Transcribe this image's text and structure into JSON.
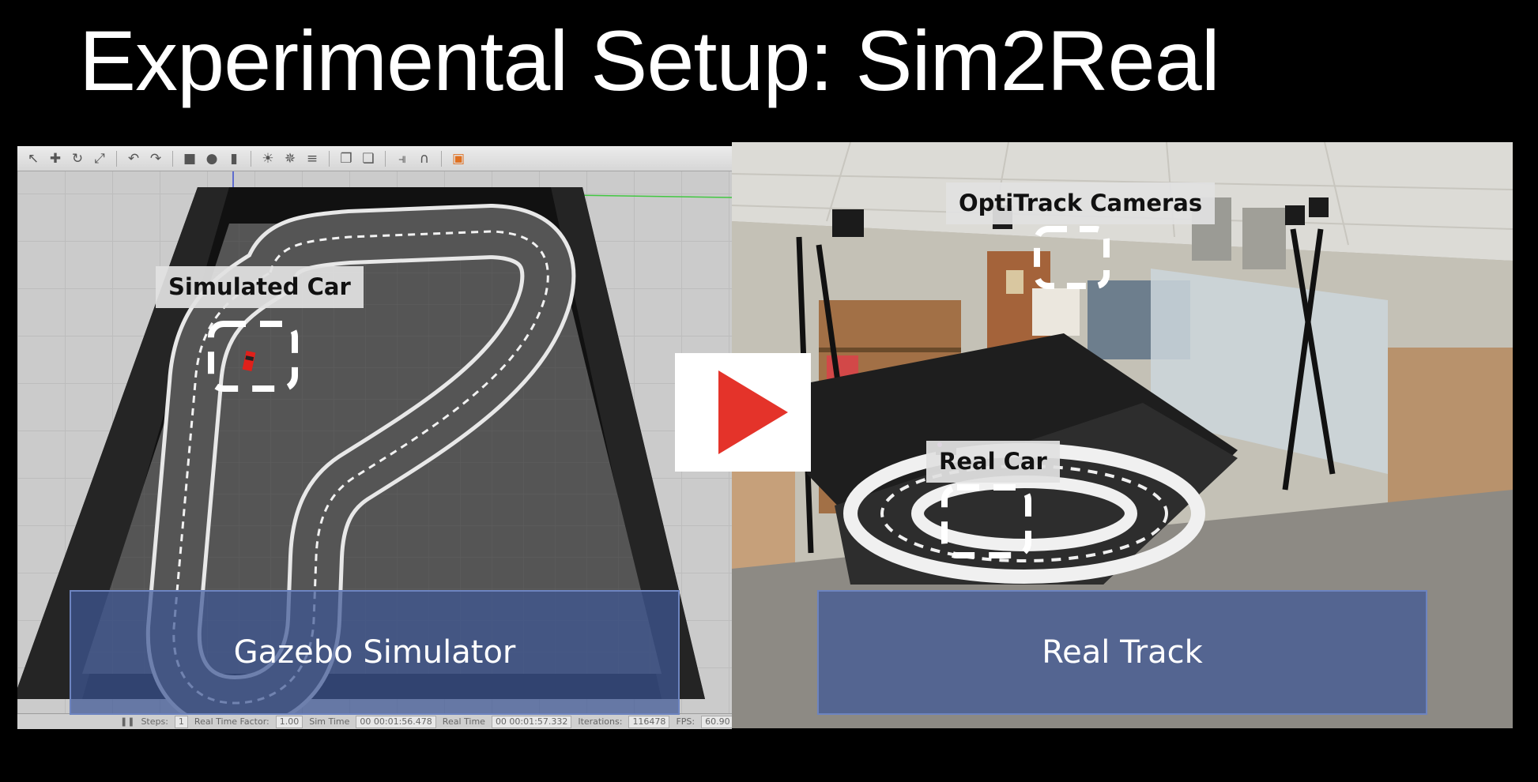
{
  "slide": {
    "title": "Experimental Setup: Sim2Real"
  },
  "gazebo": {
    "toolbar_icons": [
      "select-arrow-icon",
      "translate-icon",
      "rotate-icon",
      "scale-icon",
      "undo-icon",
      "redo-icon",
      "box-shape-icon",
      "sphere-shape-icon",
      "cylinder-shape-icon",
      "point-light-icon",
      "spot-light-icon",
      "directional-light-icon",
      "copy-icon",
      "paste-icon",
      "align-icon",
      "snap-icon",
      "screenshot-icon"
    ],
    "status": {
      "steps_label": "Steps:",
      "steps_value": "1",
      "real_time_factor_label": "Real Time Factor:",
      "real_time_factor_value": "1.00",
      "sim_time_label": "Sim Time",
      "sim_time_value": "00 00:01:56.478",
      "real_time_label": "Real Time",
      "real_time_value": "00 00:01:57.332",
      "iterations_label": "Iterations:",
      "iterations_value": "116478",
      "fps_label": "FPS:",
      "fps_value": "60.90"
    }
  },
  "labels": {
    "simulated_car": "Simulated Car",
    "optitrack_cameras": "OptiTrack Cameras",
    "real_car": "Real Car"
  },
  "captions": {
    "left": "Gazebo Simulator",
    "right": "Real Track"
  },
  "colors": {
    "caption_fill": "#3e5896",
    "play_triangle": "#e4332a",
    "sim_car": "#e0201a"
  }
}
